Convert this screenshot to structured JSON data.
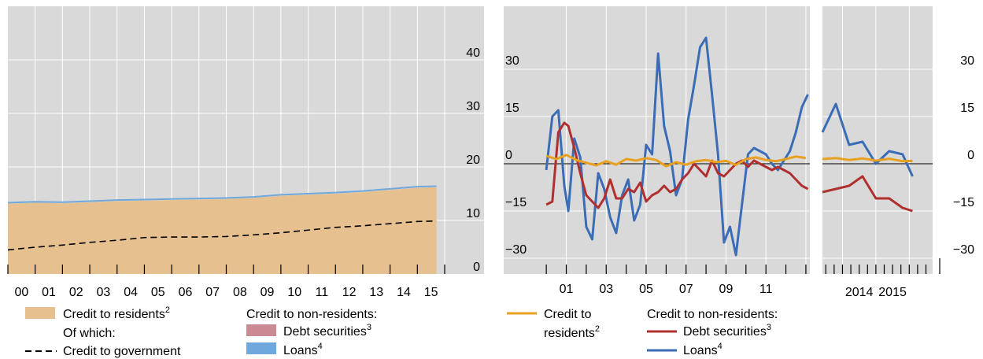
{
  "colors": {
    "panel_bg": "#d9d9d9",
    "grid": "#ffffff",
    "residents_area": "#e6c08f",
    "loans_area": "#6fa8dc",
    "debt_area": "#c98a94",
    "government_line": "#000000",
    "residents_line": "#e8a020",
    "debt_line": "#b03030",
    "loans_line": "#3a6db5"
  },
  "chart_data": [
    {
      "type": "area",
      "x_tick_labels": [
        "00",
        "01",
        "02",
        "03",
        "04",
        "05",
        "06",
        "07",
        "08",
        "09",
        "10",
        "11",
        "12",
        "13",
        "14",
        "15"
      ],
      "x_range": [
        2000,
        2016
      ],
      "y_range": [
        0,
        50
      ],
      "y_tick_labels": [
        "0",
        "10",
        "20",
        "30",
        "40"
      ],
      "y_ticks": [
        0,
        10,
        20,
        30,
        40
      ],
      "grid": true,
      "series": [
        {
          "name": "Credit to residents",
          "x": [
            2000,
            2001,
            2002,
            2003,
            2004,
            2005,
            2006,
            2007,
            2008,
            2009,
            2010,
            2011,
            2012,
            2013,
            2014,
            2015,
            2015.7
          ],
          "values": [
            13.1,
            13.3,
            13.2,
            13.4,
            13.6,
            13.7,
            13.8,
            13.9,
            14.0,
            14.2,
            14.6,
            14.8,
            15.0,
            15.3,
            15.7,
            16.1,
            16.2
          ]
        },
        {
          "name": "Loans",
          "x": [
            2000,
            2001,
            2002,
            2003,
            2004,
            2005,
            2006,
            2007,
            2008,
            2009,
            2010,
            2011,
            2012,
            2013,
            2014,
            2015,
            2015.7
          ],
          "values": [
            13.3,
            13.5,
            13.4,
            13.6,
            13.8,
            13.9,
            14.0,
            14.1,
            14.2,
            14.4,
            14.8,
            15.0,
            15.2,
            15.5,
            15.9,
            16.3,
            16.4
          ]
        },
        {
          "name": "Credit to government",
          "x": [
            2000,
            2001,
            2002,
            2003,
            2004,
            2005,
            2006,
            2007,
            2008,
            2009,
            2010,
            2011,
            2012,
            2013,
            2014,
            2015,
            2015.7
          ],
          "values": [
            4.5,
            5.0,
            5.4,
            5.9,
            6.3,
            6.8,
            6.9,
            6.9,
            7.0,
            7.3,
            7.7,
            8.2,
            8.7,
            9.0,
            9.4,
            9.8,
            9.9
          ]
        }
      ]
    },
    {
      "type": "line",
      "x_tick_labels": [
        "01",
        "03",
        "05",
        "07",
        "09",
        "11"
      ],
      "x_range": [
        1999.6,
        2013.2
      ],
      "y_range": [
        -35,
        50
      ],
      "y_tick_labels": [
        "30",
        "15",
        "0",
        "−15",
        "−30"
      ],
      "y_ticks": [
        30,
        15,
        0,
        -15,
        -30
      ],
      "grid": true,
      "series": [
        {
          "name": "Credit to residents",
          "x": [
            2000,
            2000.5,
            2001,
            2001.5,
            2002,
            2002.5,
            2003,
            2003.5,
            2004,
            2004.5,
            2005,
            2005.5,
            2006,
            2006.5,
            2007,
            2007.5,
            2008,
            2008.5,
            2009,
            2009.5,
            2010,
            2010.5,
            2011,
            2011.5,
            2012,
            2012.5,
            2013
          ],
          "values": [
            2.5,
            1.5,
            2.8,
            1.2,
            0.3,
            -0.5,
            0.8,
            -0.3,
            1.5,
            1.0,
            1.8,
            1.2,
            -0.8,
            0.5,
            -0.3,
            0.8,
            1.2,
            0.5,
            0.9,
            -0.4,
            1.5,
            2.0,
            1.2,
            0.8,
            1.5,
            2.3,
            1.8
          ]
        },
        {
          "name": "Debt securities",
          "x": [
            2000,
            2000.3,
            2000.6,
            2000.9,
            2001.1,
            2001.4,
            2001.7,
            2002,
            2002.3,
            2002.6,
            2002.9,
            2003.2,
            2003.5,
            2003.8,
            2004.1,
            2004.4,
            2004.7,
            2005,
            2005.3,
            2005.6,
            2005.9,
            2006.2,
            2006.5,
            2006.8,
            2007.1,
            2007.4,
            2007.7,
            2008,
            2008.3,
            2008.6,
            2008.9,
            2009.2,
            2009.5,
            2009.8,
            2010.1,
            2010.4,
            2010.7,
            2011,
            2011.3,
            2011.6,
            2011.9,
            2012.2,
            2012.5,
            2012.8,
            2013.1
          ],
          "values": [
            -13,
            -12,
            10,
            13,
            12,
            5,
            -3,
            -10,
            -12,
            -14,
            -11,
            -5,
            -11,
            -11,
            -8,
            -9,
            -6,
            -12,
            -10,
            -9,
            -7,
            -9,
            -8,
            -5,
            -3,
            0,
            -2,
            -4,
            1,
            -3,
            -4,
            -2,
            0,
            1,
            -1,
            1,
            0,
            -1,
            -2,
            -1,
            -2,
            -3,
            -5,
            -7,
            -8
          ]
        },
        {
          "name": "Loans",
          "x": [
            2000,
            2000.3,
            2000.6,
            2000.9,
            2001.1,
            2001.4,
            2001.7,
            2002,
            2002.3,
            2002.6,
            2002.9,
            2003.2,
            2003.5,
            2003.8,
            2004.1,
            2004.4,
            2004.7,
            2005,
            2005.3,
            2005.6,
            2005.9,
            2006.2,
            2006.5,
            2006.8,
            2007.1,
            2007.4,
            2007.7,
            2008,
            2008.3,
            2008.6,
            2008.9,
            2009.2,
            2009.5,
            2009.8,
            2010.1,
            2010.4,
            2010.7,
            2011,
            2011.3,
            2011.6,
            2011.9,
            2012.2,
            2012.5,
            2012.8,
            2013.1
          ],
          "values": [
            -2,
            15,
            17,
            -7,
            -15,
            8,
            2,
            -20,
            -24,
            -3,
            -8,
            -17,
            -22,
            -10,
            -5,
            -18,
            -13,
            6,
            3,
            35,
            12,
            4,
            -10,
            -5,
            14,
            25,
            37,
            40,
            22,
            3,
            -25,
            -20,
            -29,
            -13,
            3,
            5,
            4,
            3,
            0,
            -2,
            1,
            4,
            10,
            18,
            22
          ]
        }
      ]
    },
    {
      "type": "line",
      "x_tick_labels": [
        "2014",
        "2015"
      ],
      "x_range": [
        2013.4,
        2016.7
      ],
      "y_range": [
        -35,
        50
      ],
      "y_tick_labels": [
        "30",
        "15",
        "0",
        "−15",
        "−30"
      ],
      "y_ticks": [
        30,
        15,
        0,
        -15,
        -30
      ],
      "grid": true,
      "series": [
        {
          "name": "Credit to residents",
          "x": [
            2013.4,
            2013.8,
            2014.2,
            2014.6,
            2015,
            2015.4,
            2015.8,
            2016.1
          ],
          "values": [
            1.5,
            1.8,
            1.2,
            1.7,
            1.0,
            1.6,
            0.8,
            0.9
          ]
        },
        {
          "name": "Debt securities",
          "x": [
            2013.4,
            2013.8,
            2014.2,
            2014.6,
            2015,
            2015.4,
            2015.8,
            2016.1
          ],
          "values": [
            -9,
            -8,
            -7,
            -4,
            -11,
            -11,
            -14,
            -15
          ]
        },
        {
          "name": "Loans",
          "x": [
            2013.4,
            2013.8,
            2014.2,
            2014.6,
            2015,
            2015.4,
            2015.8,
            2016.1
          ],
          "values": [
            10,
            19,
            6,
            7,
            0,
            4,
            3,
            -4
          ]
        }
      ]
    }
  ],
  "legend_left": {
    "residents": "Credit to residents",
    "residents_sup": "2",
    "of_which": "Of which:",
    "government": "Credit to government",
    "nonres_header": "Credit to non-residents:",
    "debt": "Debt securities",
    "debt_sup": "3",
    "loans": "Loans",
    "loans_sup": "4"
  },
  "legend_right": {
    "residents_1": "Credit to",
    "residents_2": "residents",
    "residents_sup": "2",
    "nonres_header": "Credit to non-residents:",
    "debt": "Debt securities",
    "debt_sup": "3",
    "loans": "Loans",
    "loans_sup": "4"
  }
}
